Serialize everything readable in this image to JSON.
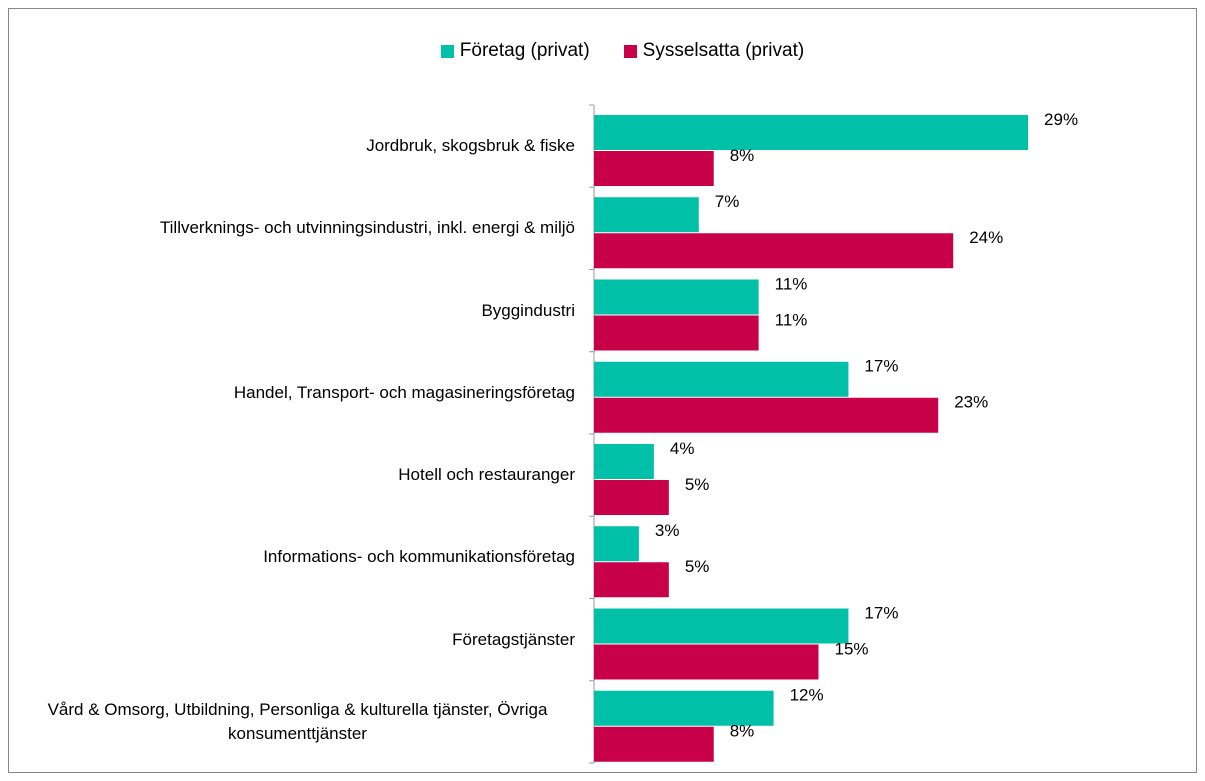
{
  "chart_data": {
    "type": "hbar",
    "categories": [
      "Jordbruk, skogsbruk & fiske",
      "Tillverknings- och utvinningsindustri, inkl. energi & miljö",
      "Byggindustri",
      "Handel, Transport- och magasineringsföretag",
      "Hotell och restauranger",
      "Informations- och kommunikationsföretag",
      "Företagstjänster",
      "Vård & Omsorg, Utbildning, Personliga & kulturella tjänster, Övriga konsumenttjänster"
    ],
    "series": [
      {
        "name": "Företag (privat)",
        "color": "#00c0a8",
        "values": [
          29,
          7,
          11,
          17,
          4,
          3,
          17,
          12
        ],
        "value_labels": [
          "29%",
          "7%",
          "11%",
          "17%",
          "4%",
          "3%",
          "17%",
          "12%"
        ]
      },
      {
        "name": "Sysselsatta (privat)",
        "color": "#c8004a",
        "values": [
          8,
          24,
          11,
          23,
          5,
          5,
          15,
          8
        ],
        "value_labels": [
          "8%",
          "24%",
          "11%",
          "23%",
          "5%",
          "5%",
          "15%",
          "8%"
        ]
      }
    ],
    "xlim": [
      0,
      30
    ],
    "legend": "top"
  }
}
